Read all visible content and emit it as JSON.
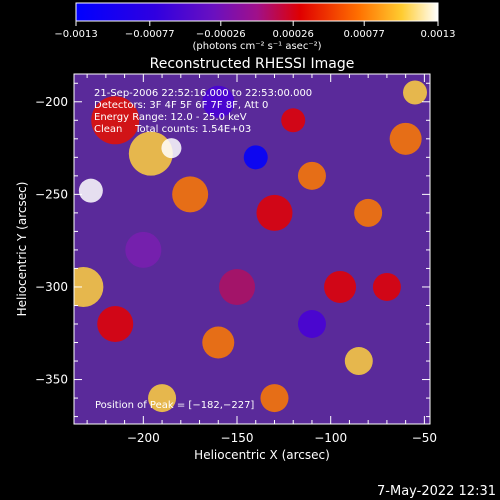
{
  "chart_data": {
    "type": "heatmap",
    "title": "Reconstructed RHESSI Image",
    "xlabel": "Heliocentric X (arcsec)",
    "ylabel": "Heliocentric Y (arcsec)",
    "xlim": [
      -237,
      -47
    ],
    "ylim": [
      -374,
      -185
    ],
    "x_ticks": [
      -200,
      -150,
      -100,
      -50
    ],
    "y_ticks": [
      -200,
      -250,
      -300,
      -350
    ],
    "x_tick_labels": [
      "−200",
      "−150",
      "−100",
      "−50"
    ],
    "y_tick_labels": [
      "−200",
      "−250",
      "−300",
      "−350"
    ],
    "colorbar": {
      "min": -0.0013,
      "max": 0.0013,
      "ticks": [
        -0.0013,
        -0.00077,
        -0.00026,
        0.00026,
        0.00077,
        0.0013
      ],
      "tick_labels": [
        "−0.0013",
        "−0.00077",
        "−0.00026",
        "0.00026",
        "0.00077",
        "0.0013"
      ],
      "unit_label": "(photons cm⁻² s⁻¹ asec⁻²)",
      "colors": [
        "#0000ff",
        "#4800d8",
        "#7a1fb0",
        "#b01060",
        "#e60000",
        "#ff7a00",
        "#ffd040",
        "#ffffff"
      ]
    },
    "annotations": [
      "21-Sep-2006 22:52:16.000 to 22:53:00.000",
      "Detectors: 3F 4F 5F 6F 7F 8F, Att 0",
      "Energy Range: 12.0 - 25.0 keV",
      "Clean    Total counts: 1.54E+03"
    ],
    "peak_label": "Position of Peak = [−182,−227]",
    "peak": [
      -182,
      -227
    ]
  },
  "footer": {
    "timestamp": "7-May-2022 12:31"
  }
}
